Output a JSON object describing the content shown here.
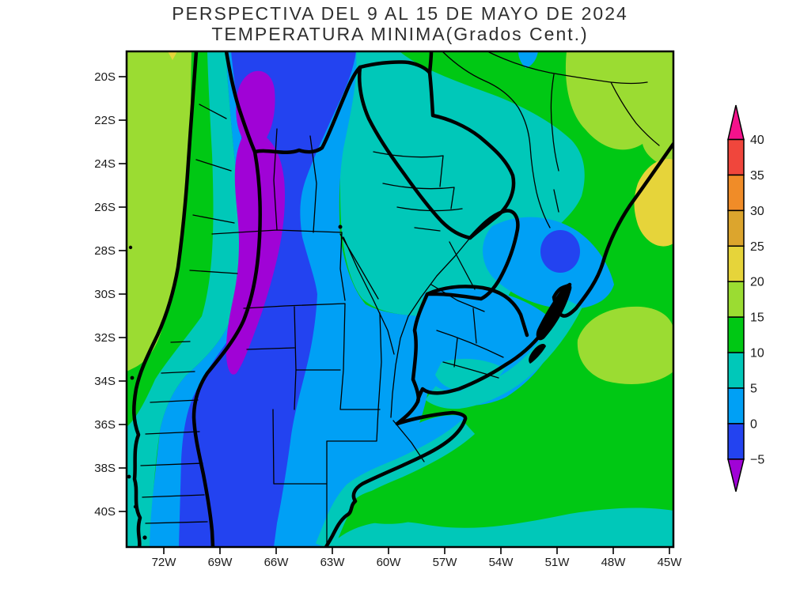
{
  "title": {
    "line1": "PERSPECTIVA DEL 9 AL 15 DE MAYO DE 2024",
    "line2": "TEMPERATURA MINIMA(Grados Cent.)"
  },
  "palette": {
    "magenta": "#F5128C",
    "red": "#F0463C",
    "orange": "#F08C28",
    "gold": "#DCA52D",
    "yellow": "#E6D43A",
    "yellowgreen": "#9BDC32",
    "green": "#00C814",
    "teal": "#00C8B9",
    "lightblue": "#00A0F5",
    "blue": "#2343F0",
    "purple": "#A003D6",
    "line": "#000000"
  },
  "colorbar": {
    "tick_labels": [
      "40",
      "35",
      "30",
      "25",
      "20",
      "15",
      "10",
      "5",
      "0",
      "-5"
    ],
    "segment_colors_top_to_bottom": [
      "red",
      "orange",
      "gold",
      "yellow",
      "yellowgreen",
      "green",
      "teal",
      "lightblue",
      "blue"
    ],
    "arrow_top_color": "magenta",
    "arrow_bottom_color": "purple"
  },
  "axes": {
    "lat_labels": [
      "20S",
      "22S",
      "24S",
      "26S",
      "28S",
      "30S",
      "32S",
      "34S",
      "36S",
      "38S",
      "40S"
    ],
    "lon_labels": [
      "72W",
      "69W",
      "66W",
      "63W",
      "60W",
      "57W",
      "54W",
      "51W",
      "48W",
      "45W"
    ]
  },
  "map_legend_bins": [
    {
      "range": "above 40",
      "color": "magenta"
    },
    {
      "range": "35 to 40",
      "color": "red"
    },
    {
      "range": "30 to 35",
      "color": "orange"
    },
    {
      "range": "25 to 30",
      "color": "gold"
    },
    {
      "range": "20 to 25",
      "color": "yellow"
    },
    {
      "range": "15 to 20",
      "color": "yellowgreen"
    },
    {
      "range": "10 to 15",
      "color": "green"
    },
    {
      "range": "5 to 10",
      "color": "teal"
    },
    {
      "range": "0 to 5",
      "color": "lightblue"
    },
    {
      "range": "-5 to 0",
      "color": "blue"
    },
    {
      "range": "below -5",
      "color": "purple"
    }
  ]
}
